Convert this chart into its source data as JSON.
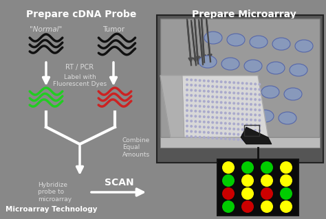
{
  "bg_color": "#888888",
  "title_left": "Prepare cDNA Probe",
  "title_right": "Prepare Microarray",
  "label_normal": "\"Normal\"",
  "label_tumor": "Tumor",
  "label_rtpcr": "RT / PCR",
  "label_fluor": "Label with\nFluorescent Dyes",
  "label_combine": "Combine\nEqual\nAmounts",
  "label_hybridize": "Hybridize\nprobe to\nmicroarray",
  "label_scan": "SCAN",
  "label_bottom": "Microarray Technology",
  "dot_colors_grid": [
    [
      "#ffff00",
      "#00cc00",
      "#00cc00",
      "#ffff00"
    ],
    [
      "#00cc00",
      "#ffff00",
      "#ffff00",
      "#ffff00"
    ],
    [
      "#cc0000",
      "#ffff00",
      "#cc0000",
      "#00cc00"
    ],
    [
      "#00cc00",
      "#cc0000",
      "#ffff00",
      "#ffff00"
    ]
  ],
  "wave_black_color": "#111111",
  "wave_green_color": "#22cc22",
  "wave_red_color": "#cc2222",
  "arrow_color": "#ffffff",
  "text_color": "#ffffff",
  "text_color_dark": "#dddddd",
  "well_color": "#8899bb",
  "needle_color": "#444444",
  "scan_panel_bg": "#0a0a0a",
  "plate_face": "#aaaaaa",
  "plate_edge": "#888888",
  "slide_face": "#d8d8d8",
  "slide_edge": "#aaaaaa",
  "box_bg": "#555555"
}
